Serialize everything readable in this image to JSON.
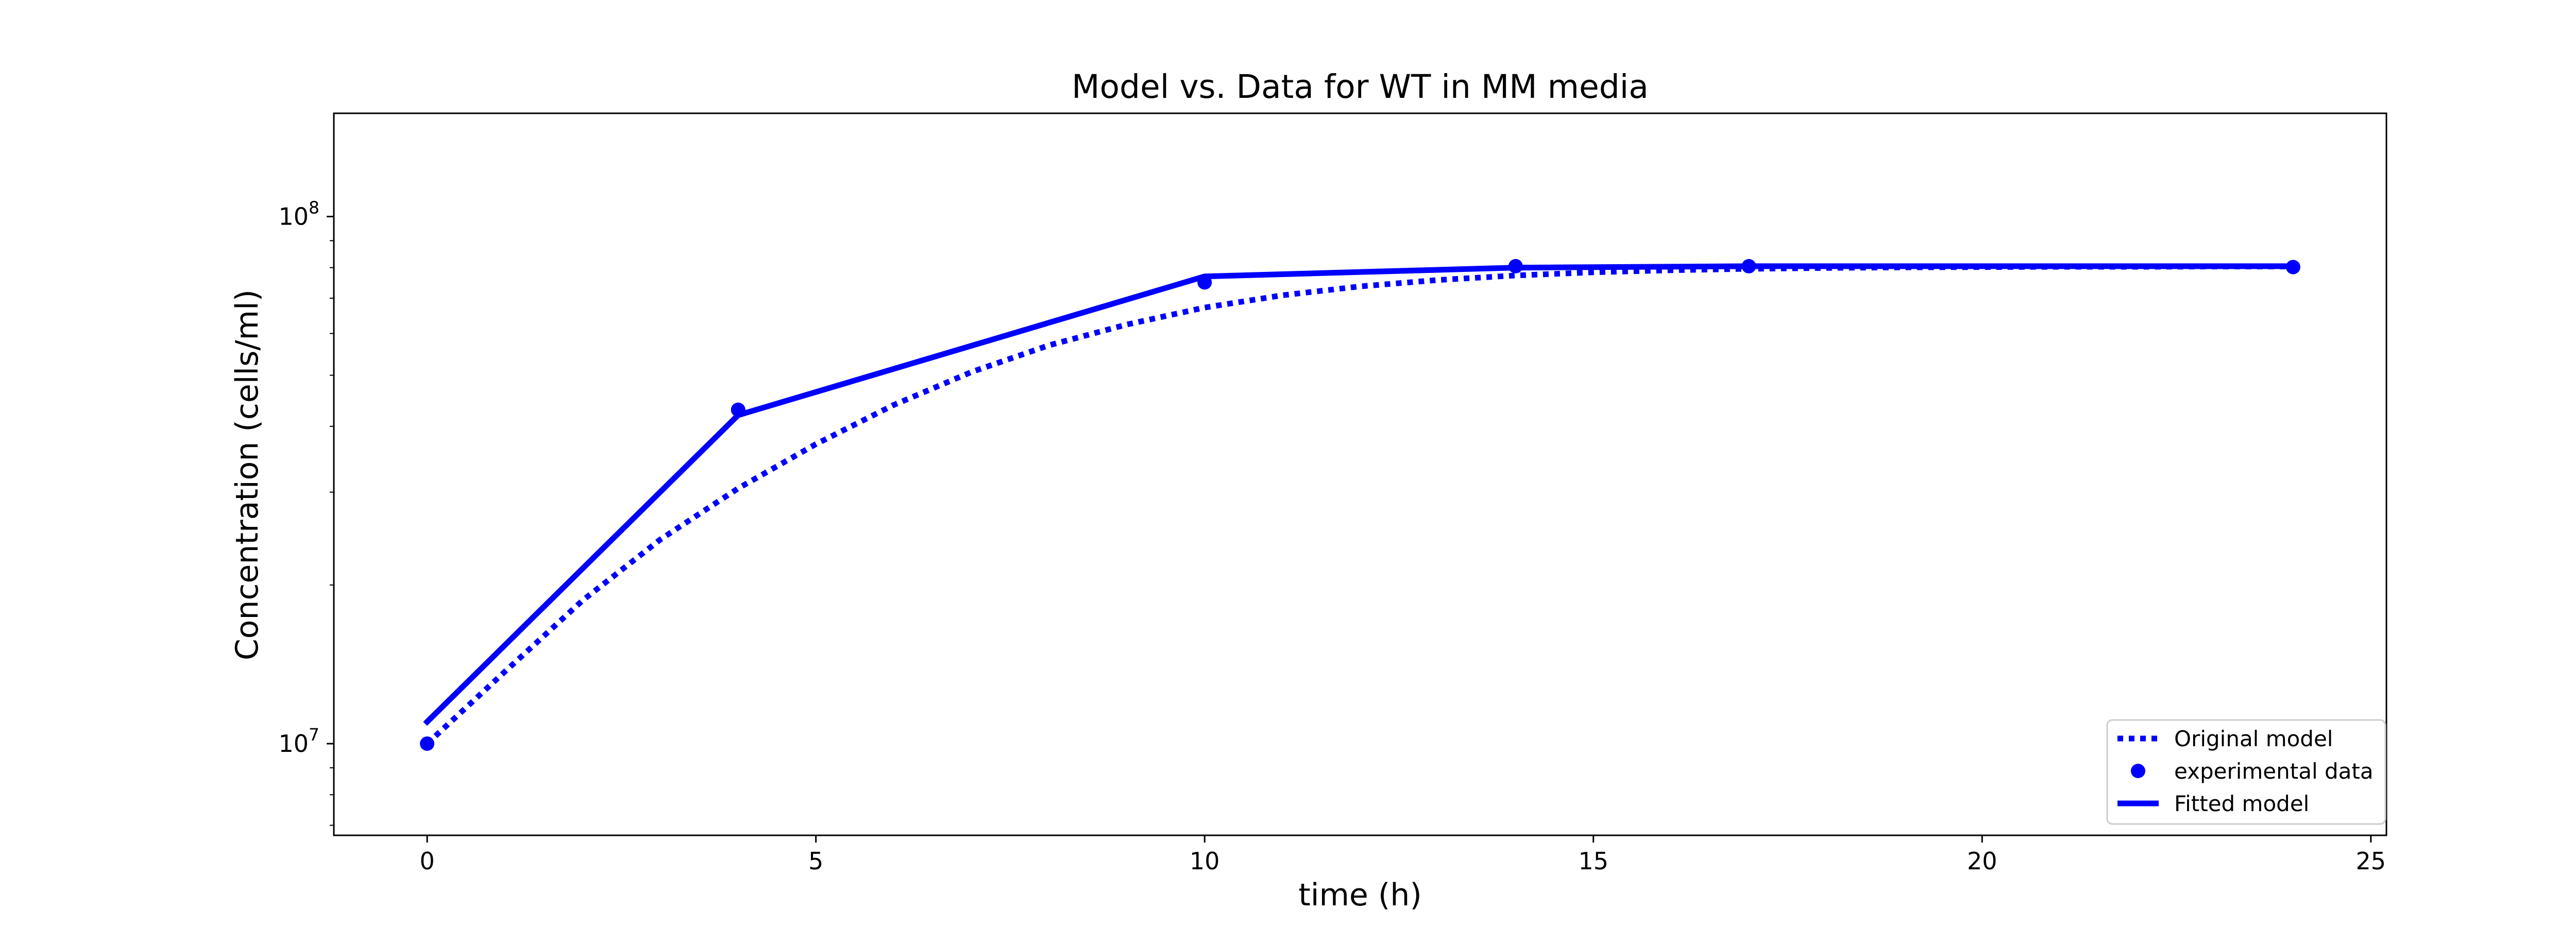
{
  "chart_data": {
    "type": "line",
    "title": "Model vs. Data for WT in MM media",
    "xlabel": "time (h)",
    "ylabel": "Concentration (cells/ml)",
    "xlim": [
      -1.2,
      25.2
    ],
    "ylim": [
      6700000,
      157000000
    ],
    "yscale": "log",
    "grid": false,
    "legend_position": "lower right",
    "x_ticks": [
      {
        "value": 0,
        "label": "0"
      },
      {
        "value": 5,
        "label": "5"
      },
      {
        "value": 10,
        "label": "10"
      },
      {
        "value": 15,
        "label": "15"
      },
      {
        "value": 20,
        "label": "20"
      },
      {
        "value": 25,
        "label": "25"
      }
    ],
    "y_ticks": [
      {
        "value": 10000000,
        "base": "10",
        "exp": "7"
      },
      {
        "value": 100000000,
        "base": "10",
        "exp": "8"
      }
    ],
    "y_minor_ticks": [
      7000000,
      8000000,
      9000000,
      20000000,
      30000000,
      40000000,
      50000000,
      60000000,
      70000000,
      80000000,
      90000000
    ],
    "series": [
      {
        "name": "Original model",
        "style": "dotted",
        "color": "#0000ff",
        "x": [
          0,
          1,
          2,
          3,
          4,
          5,
          6,
          7,
          8,
          9,
          10,
          11,
          12,
          13,
          14,
          15,
          16,
          17,
          18,
          19,
          20,
          21,
          22,
          23,
          24
        ],
        "y": [
          10000000,
          13700000,
          18700000,
          24400000,
          30500000,
          37000000,
          43900000,
          50700000,
          57000000,
          62400000,
          67200000,
          70900000,
          73700000,
          75800000,
          77300000,
          78400000,
          79100000,
          79600000,
          79900000,
          80100000,
          80200000,
          80300000,
          80300000,
          80400000,
          80400000
        ]
      },
      {
        "name": "experimental data",
        "style": "markers",
        "color": "#0000ff",
        "x": [
          0,
          4,
          10,
          14,
          17,
          24
        ],
        "y": [
          10000000,
          43000000,
          75000000,
          80500000,
          80500000,
          80200000
        ]
      },
      {
        "name": "Fitted model",
        "style": "solid",
        "color": "#0000ff",
        "x": [
          0,
          4,
          10,
          14,
          17,
          24
        ],
        "y": [
          11000000,
          42000000,
          77000000,
          80000000,
          80500000,
          80500000
        ]
      }
    ]
  }
}
